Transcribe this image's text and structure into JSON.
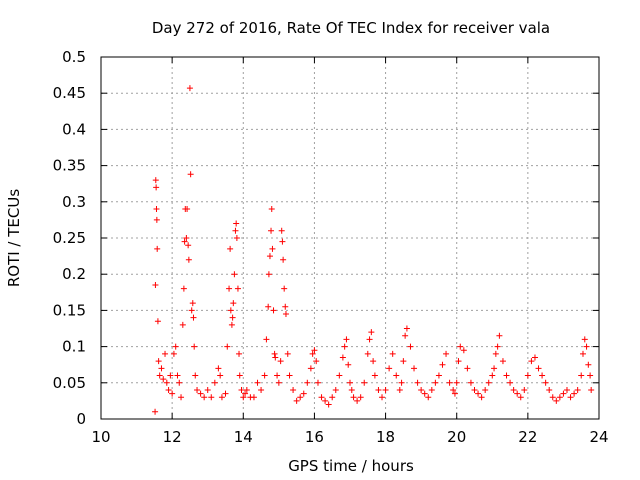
{
  "chart_data": {
    "type": "scatter",
    "title": "Day 272 of 2016, Rate Of TEC Index for receiver vala",
    "xlabel": "GPS time / hours",
    "ylabel": "ROTI / TECUs",
    "xlim": [
      10,
      24
    ],
    "ylim": [
      0,
      0.5
    ],
    "xticks": [
      10,
      12,
      14,
      16,
      18,
      20,
      22,
      24
    ],
    "xtick_labels": [
      "10",
      "12",
      "14",
      "16",
      "18",
      "20",
      "22",
      "24"
    ],
    "yticks": [
      0,
      0.05,
      0.1,
      0.15,
      0.2,
      0.25,
      0.3,
      0.35,
      0.4,
      0.45,
      0.5
    ],
    "ytick_labels": [
      "0",
      "0.05",
      "0.1",
      "0.15",
      "0.2",
      "0.25",
      "0.3",
      "0.35",
      "0.4",
      "0.45",
      "0.5"
    ],
    "grid": true,
    "marker": "+",
    "color": "#ff0000",
    "series": [
      {
        "name": "ROTI",
        "x": [
          11.52,
          11.53,
          11.54,
          11.55,
          11.56,
          11.57,
          11.58,
          11.6,
          11.62,
          11.65,
          11.7,
          11.75,
          11.8,
          11.85,
          11.9,
          11.95,
          12.0,
          12.05,
          12.1,
          12.15,
          12.2,
          12.25,
          12.3,
          12.33,
          12.35,
          12.37,
          12.4,
          12.42,
          12.45,
          12.47,
          12.5,
          12.52,
          12.55,
          12.58,
          12.6,
          12.62,
          12.65,
          12.7,
          12.8,
          12.9,
          13.0,
          13.1,
          13.2,
          13.3,
          13.35,
          13.4,
          13.5,
          13.55,
          13.6,
          13.63,
          13.65,
          13.68,
          13.7,
          13.72,
          13.75,
          13.78,
          13.8,
          13.82,
          13.85,
          13.88,
          13.9,
          13.95,
          14.0,
          14.05,
          14.1,
          14.2,
          14.3,
          14.4,
          14.5,
          14.6,
          14.65,
          14.7,
          14.72,
          14.75,
          14.78,
          14.8,
          14.82,
          14.85,
          14.88,
          14.9,
          14.95,
          15.0,
          15.05,
          15.08,
          15.1,
          15.12,
          15.15,
          15.18,
          15.2,
          15.25,
          15.3,
          15.4,
          15.5,
          15.6,
          15.7,
          15.8,
          15.9,
          15.95,
          16.0,
          16.05,
          16.1,
          16.2,
          16.3,
          16.4,
          16.5,
          16.6,
          16.7,
          16.8,
          16.85,
          16.9,
          16.95,
          17.0,
          17.05,
          17.1,
          17.2,
          17.3,
          17.4,
          17.5,
          17.55,
          17.6,
          17.65,
          17.7,
          17.8,
          17.9,
          18.0,
          18.1,
          18.2,
          18.3,
          18.4,
          18.45,
          18.5,
          18.55,
          18.6,
          18.7,
          18.8,
          18.9,
          19.0,
          19.1,
          19.2,
          19.3,
          19.4,
          19.5,
          19.6,
          19.7,
          19.8,
          19.9,
          19.95,
          20.0,
          20.05,
          20.1,
          20.2,
          20.3,
          20.4,
          20.5,
          20.6,
          20.7,
          20.8,
          20.9,
          21.0,
          21.05,
          21.1,
          21.15,
          21.2,
          21.3,
          21.4,
          21.5,
          21.6,
          21.7,
          21.8,
          21.9,
          22.0,
          22.1,
          22.2,
          22.3,
          22.4,
          22.5,
          22.6,
          22.7,
          22.8,
          22.9,
          23.0,
          23.1,
          23.2,
          23.3,
          23.4,
          23.5,
          23.55,
          23.6,
          23.65,
          23.7,
          23.75,
          23.78
        ],
        "y": [
          0.01,
          0.185,
          0.33,
          0.32,
          0.29,
          0.275,
          0.235,
          0.135,
          0.08,
          0.06,
          0.07,
          0.055,
          0.09,
          0.05,
          0.04,
          0.06,
          0.035,
          0.09,
          0.1,
          0.06,
          0.05,
          0.03,
          0.13,
          0.18,
          0.245,
          0.29,
          0.25,
          0.29,
          0.24,
          0.22,
          0.457,
          0.338,
          0.15,
          0.16,
          0.14,
          0.1,
          0.06,
          0.04,
          0.035,
          0.03,
          0.04,
          0.03,
          0.05,
          0.07,
          0.06,
          0.03,
          0.035,
          0.1,
          0.18,
          0.235,
          0.15,
          0.13,
          0.14,
          0.16,
          0.2,
          0.26,
          0.27,
          0.25,
          0.18,
          0.09,
          0.06,
          0.04,
          0.03,
          0.035,
          0.04,
          0.03,
          0.03,
          0.05,
          0.04,
          0.06,
          0.11,
          0.155,
          0.2,
          0.225,
          0.26,
          0.29,
          0.235,
          0.15,
          0.09,
          0.085,
          0.06,
          0.05,
          0.08,
          0.26,
          0.245,
          0.22,
          0.18,
          0.155,
          0.145,
          0.09,
          0.06,
          0.04,
          0.025,
          0.03,
          0.035,
          0.05,
          0.07,
          0.09,
          0.095,
          0.08,
          0.05,
          0.03,
          0.025,
          0.02,
          0.03,
          0.04,
          0.06,
          0.085,
          0.1,
          0.11,
          0.075,
          0.05,
          0.04,
          0.03,
          0.025,
          0.03,
          0.05,
          0.09,
          0.11,
          0.12,
          0.08,
          0.06,
          0.04,
          0.03,
          0.04,
          0.07,
          0.09,
          0.06,
          0.04,
          0.05,
          0.08,
          0.115,
          0.125,
          0.1,
          0.07,
          0.05,
          0.04,
          0.035,
          0.03,
          0.04,
          0.05,
          0.06,
          0.075,
          0.09,
          0.05,
          0.04,
          0.035,
          0.05,
          0.08,
          0.1,
          0.095,
          0.07,
          0.05,
          0.04,
          0.035,
          0.03,
          0.04,
          0.05,
          0.06,
          0.07,
          0.09,
          0.1,
          0.115,
          0.08,
          0.06,
          0.05,
          0.04,
          0.035,
          0.03,
          0.04,
          0.06,
          0.08,
          0.085,
          0.07,
          0.06,
          0.05,
          0.04,
          0.03,
          0.025,
          0.03,
          0.035,
          0.04,
          0.03,
          0.035,
          0.04,
          0.06,
          0.09,
          0.11,
          0.1,
          0.075,
          0.06,
          0.04
        ]
      }
    ]
  }
}
